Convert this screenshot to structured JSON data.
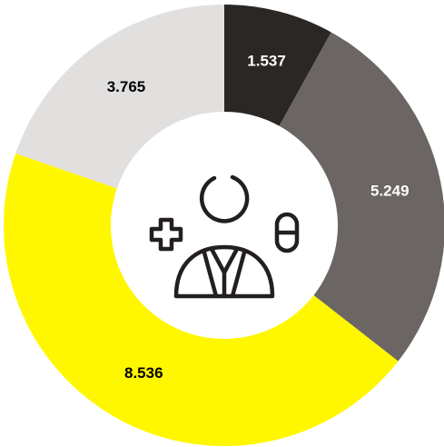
{
  "chart_data": {
    "type": "donut",
    "categories": [
      null,
      null,
      null,
      null
    ],
    "values": [
      1.537,
      5.249,
      8.536,
      3.765
    ],
    "colors": [
      "#2b2724",
      "#6b6663",
      "#fff700",
      "#e2dfdf"
    ],
    "start_angle": 0,
    "direction": "clockwise"
  }
}
